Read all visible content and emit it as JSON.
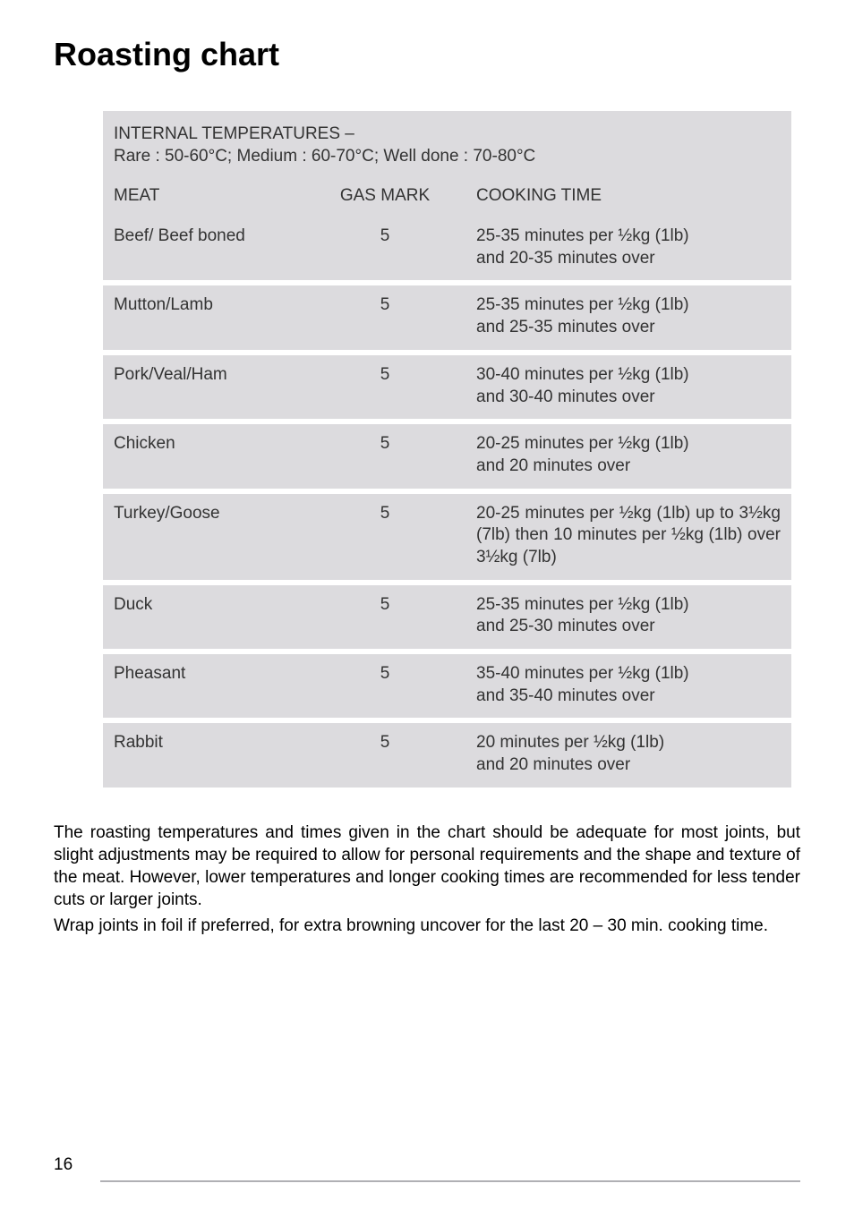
{
  "page": {
    "title": "Roasting chart",
    "number": "16"
  },
  "table": {
    "header": {
      "line1": "INTERNAL TEMPERATURES –",
      "line2": "Rare : 50-60°C; Medium : 60-70°C; Well done : 70-80°C"
    },
    "columns": {
      "meat": "MEAT",
      "gas": "GAS MARK",
      "time": "COOKING TIME"
    },
    "row_bg": "#dcdbde",
    "spacer_bg": "#ffffff",
    "rows": [
      {
        "meat": "Beef/ Beef boned",
        "gas": "5",
        "time": "25-35 minutes per ½kg (1lb)\nand 20-35 minutes over"
      },
      {
        "meat": "Mutton/Lamb",
        "gas": "5",
        "time": "25-35 minutes per ½kg (1lb)\nand 25-35 minutes over"
      },
      {
        "meat": "Pork/Veal/Ham",
        "gas": "5",
        "time": "30-40 minutes per ½kg (1lb)\nand 30-40 minutes over"
      },
      {
        "meat": "Chicken",
        "gas": "5",
        "time": "20-25 minutes per ½kg (1lb)\nand 20 minutes over"
      },
      {
        "meat": "Turkey/Goose",
        "gas": "5",
        "time": "20-25 minutes per ½kg (1lb) up to 3½kg (7lb) then 10 minutes per ½kg (1lb) over  3½kg (7lb)",
        "justify": true
      },
      {
        "meat": "Duck",
        "gas": "5",
        "time": "25-35 minutes per ½kg (1lb)\nand 25-30 minutes over"
      },
      {
        "meat": "Pheasant",
        "gas": "5",
        "time": "35-40 minutes per ½kg (1lb)\nand 35-40 minutes over"
      },
      {
        "meat": "Rabbit",
        "gas": "5",
        "time": "20 minutes per ½kg (1lb)\nand 20 minutes over"
      }
    ]
  },
  "body": {
    "p1": "The roasting temperatures and times given in the chart should be adequate for most joints, but slight adjustments may be required to allow for personal requirements and the shape and texture of the meat. However, lower temperatures and longer cooking times are recommended for less tender cuts or larger joints.",
    "p2": "Wrap joints in foil if preferred, for extra browning uncover for the last 20 – 30 min. cooking time."
  }
}
